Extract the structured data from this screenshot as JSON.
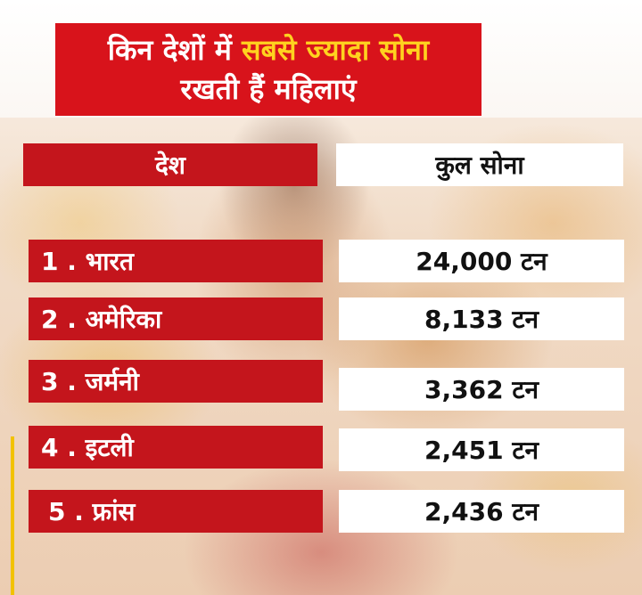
{
  "title": {
    "line1_part1": "किन देशों में ",
    "line1_part2": "सबसे ज्यादा सोना",
    "line2": "रखती हैं महिलाएं"
  },
  "table": {
    "headers": {
      "country": "देश",
      "total_gold": "कुल सोना"
    },
    "rows": [
      {
        "country": "1 . भारत",
        "gold": "24,000 टन"
      },
      {
        "country": "2 . अमेरिका",
        "gold": "8,133 टन"
      },
      {
        "country": "3 . जर्मनी",
        "gold": "3,362 टन"
      },
      {
        "country": "4 . इटली",
        "gold": "2,451 टन"
      },
      {
        "country": "5 . फ्रांस",
        "gold": "2,436 टन"
      }
    ]
  },
  "colors": {
    "red": "#c4151c",
    "title_red": "#d8131b",
    "highlight_yellow": "#ffd21f",
    "white": "#ffffff"
  }
}
